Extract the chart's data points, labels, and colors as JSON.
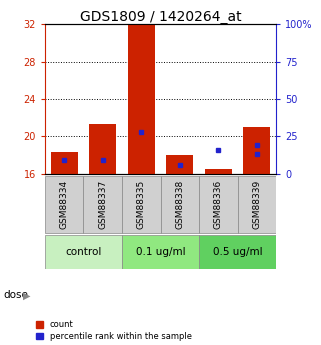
{
  "title": "GDS1809 / 1420264_at",
  "samples": [
    "GSM88334",
    "GSM88337",
    "GSM88335",
    "GSM88338",
    "GSM88336",
    "GSM88339"
  ],
  "groups": [
    {
      "label": "control",
      "indices": [
        0,
        1
      ]
    },
    {
      "label": "0.1 ug/ml",
      "indices": [
        2,
        3
      ]
    },
    {
      "label": "0.5 ug/ml",
      "indices": [
        4,
        5
      ]
    }
  ],
  "group_colors": [
    "#c8f0c0",
    "#90e880",
    "#60d060"
  ],
  "baseline": 16,
  "ylim_left": [
    16,
    32
  ],
  "ylim_right": [
    0,
    100
  ],
  "yticks_left": [
    16,
    20,
    24,
    28,
    32
  ],
  "yticks_right": [
    0,
    25,
    50,
    75,
    100
  ],
  "ytick_labels_right": [
    "0",
    "25",
    "50",
    "75",
    "100%"
  ],
  "red_bar_tops": [
    18.3,
    21.3,
    32.0,
    18.0,
    16.5,
    21.0
  ],
  "blue_marker_pct": [
    9.0,
    9.0,
    28.0,
    6.0,
    16.0,
    19.0
  ],
  "blue_marker2_pct": [
    null,
    null,
    null,
    null,
    null,
    13.0
  ],
  "bar_color": "#cc2200",
  "blue_color": "#2222cc",
  "bar_width": 0.7,
  "label_color_left": "#cc2200",
  "label_color_right": "#2222cc",
  "dose_label": "dose",
  "legend_count": "count",
  "legend_pct": "percentile rank within the sample",
  "title_fontsize": 10,
  "tick_fontsize": 7,
  "sample_fontsize": 6.5,
  "group_fontsize": 7.5,
  "sample_box_color": "#d0d0d0",
  "sample_box_edgecolor": "#888888",
  "grid_yticks": [
    20,
    24,
    28
  ]
}
